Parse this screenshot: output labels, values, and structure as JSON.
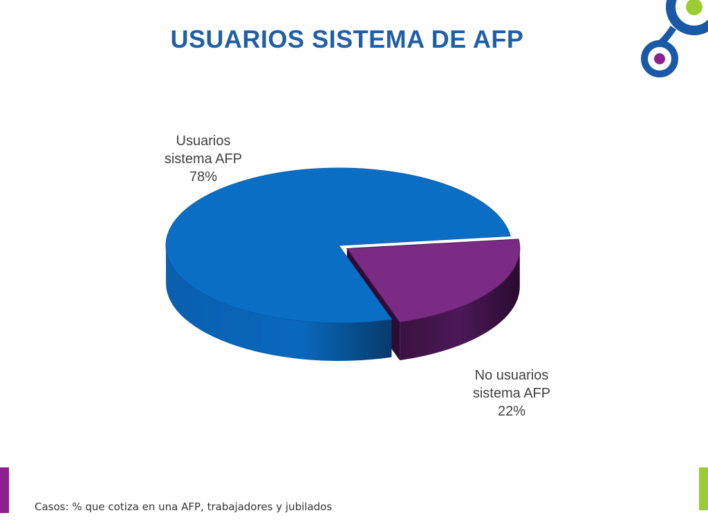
{
  "slide": {
    "title": "USUARIOS SISTEMA DE AFP",
    "footnote": "Casos: % que cotiza en una AFP, trabajadores y jubilados"
  },
  "colors": {
    "title": "#1f5fa6",
    "slice_users": "#0a6fc4",
    "slice_non_users": "#7a2b84",
    "accent_left": "#8e1f8e",
    "accent_right": "#9acd32",
    "logo_ring": "#1a58a8",
    "logo_green": "#9acd32",
    "logo_purple": "#8e1f8e"
  },
  "chart_data": {
    "type": "pie",
    "style": "3d",
    "categories": [
      "Usuarios sistema AFP",
      "No usuarios sistema AFP"
    ],
    "values": [
      78,
      22
    ],
    "value_labels": [
      "78%",
      "22%"
    ],
    "label_lines": [
      [
        "Usuarios",
        "sistema AFP",
        "78%"
      ],
      [
        "No usuarios",
        "sistema AFP",
        "22%"
      ]
    ],
    "title": ""
  }
}
